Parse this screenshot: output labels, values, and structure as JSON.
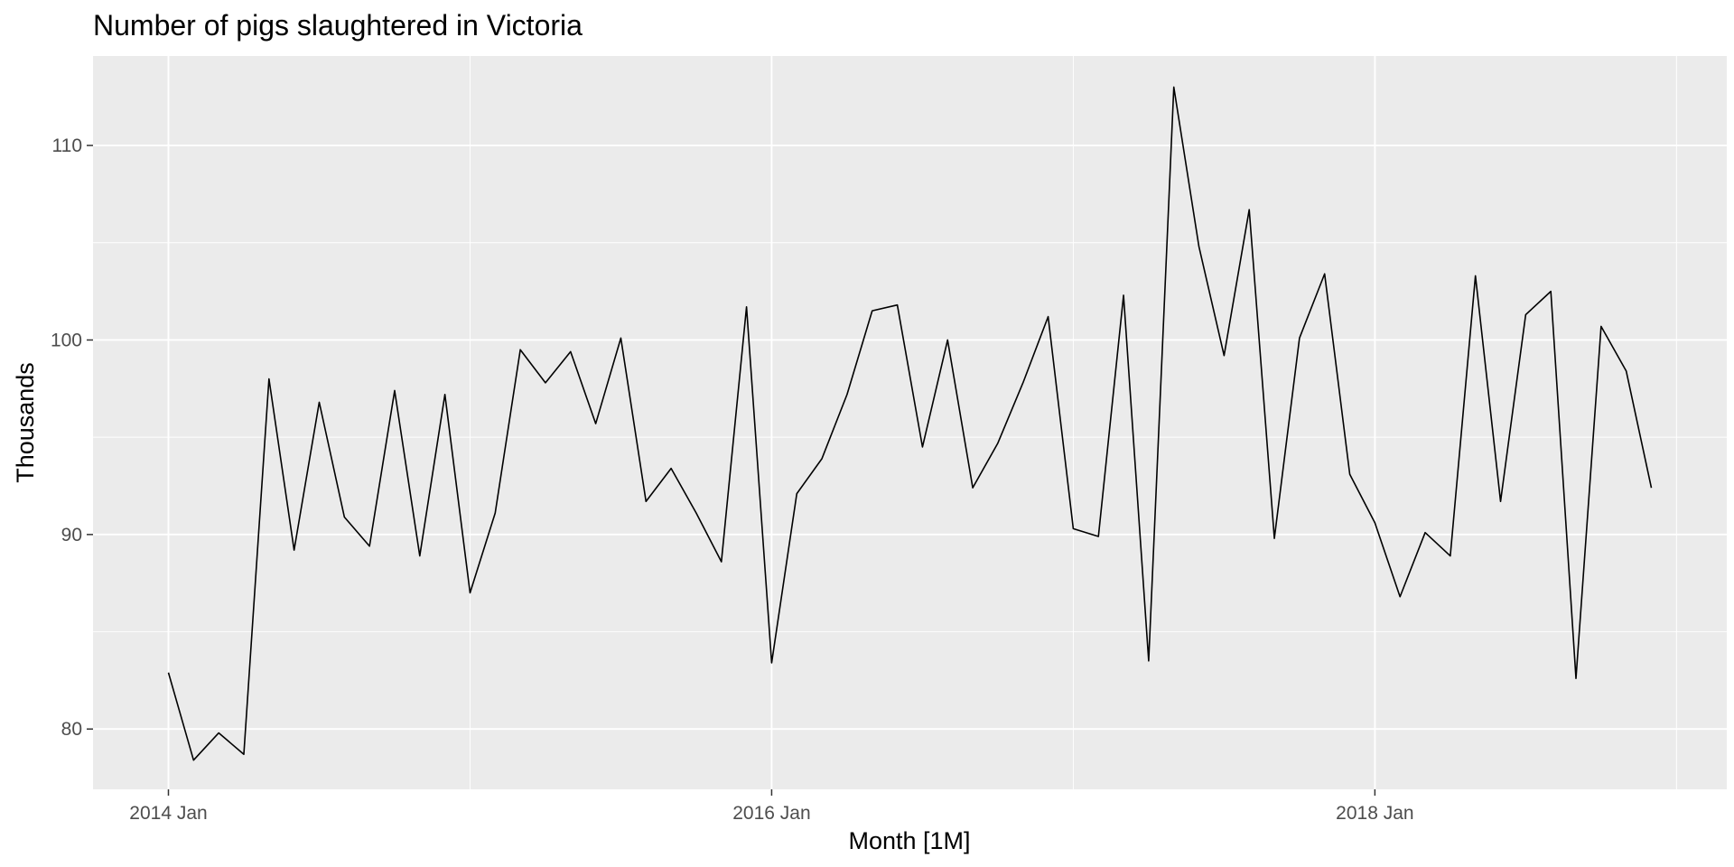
{
  "chart_data": {
    "type": "line",
    "title": "Number of pigs slaughtered in Victoria",
    "xlabel": "Month [1M]",
    "ylabel": "Thousands",
    "grid": true,
    "legend": "none",
    "colors": {
      "panel": "#ebebeb",
      "grid": "#ffffff",
      "line": "#000000",
      "tick_text": "#4d4d4d"
    },
    "xlim": [
      "2013-10",
      "2019-03"
    ],
    "ylim": [
      76.9,
      114.6
    ],
    "x_ticks": [
      {
        "value": "2014-01",
        "label": "2014 Jan"
      },
      {
        "value": "2016-01",
        "label": "2016 Jan"
      },
      {
        "value": "2018-01",
        "label": "2018 Jan"
      }
    ],
    "x_minor_ticks": [
      "2015-01",
      "2017-01",
      "2019-01"
    ],
    "y_ticks": [
      {
        "value": 80,
        "label": "80"
      },
      {
        "value": 90,
        "label": "90"
      },
      {
        "value": 100,
        "label": "100"
      },
      {
        "value": 110,
        "label": "110"
      }
    ],
    "y_minor_ticks": [
      85,
      95,
      105
    ],
    "series": [
      {
        "x": [
          "2014-01",
          "2014-02",
          "2014-03",
          "2014-04",
          "2014-05",
          "2014-06",
          "2014-07",
          "2014-08",
          "2014-09",
          "2014-10",
          "2014-11",
          "2014-12",
          "2015-01",
          "2015-02",
          "2015-03",
          "2015-04",
          "2015-05",
          "2015-06",
          "2015-07",
          "2015-08",
          "2015-09",
          "2015-10",
          "2015-11",
          "2015-12",
          "2016-01",
          "2016-02",
          "2016-03",
          "2016-04",
          "2016-05",
          "2016-06",
          "2016-07",
          "2016-08",
          "2016-09",
          "2016-10",
          "2016-11",
          "2016-12",
          "2017-01",
          "2017-02",
          "2017-03",
          "2017-04",
          "2017-05",
          "2017-06",
          "2017-07",
          "2017-08",
          "2017-09",
          "2017-10",
          "2017-11",
          "2017-12",
          "2018-01",
          "2018-02",
          "2018-03",
          "2018-04",
          "2018-05",
          "2018-06",
          "2018-07",
          "2018-08",
          "2018-09",
          "2018-10",
          "2018-11",
          "2018-12"
        ],
        "values": [
          82.9,
          78.4,
          79.8,
          78.7,
          98.0,
          89.2,
          96.8,
          90.9,
          89.4,
          97.4,
          88.9,
          97.2,
          87.0,
          91.1,
          99.5,
          97.8,
          99.4,
          95.7,
          100.1,
          91.7,
          93.4,
          91.1,
          88.6,
          101.7,
          83.4,
          92.1,
          93.9,
          97.2,
          101.5,
          101.8,
          94.5,
          100.0,
          92.4,
          94.7,
          97.8,
          101.2,
          90.3,
          89.9,
          102.3,
          83.5,
          113.0,
          104.8,
          99.2,
          106.7,
          89.8,
          100.1,
          103.4,
          93.1,
          90.6,
          86.8,
          90.1,
          88.9,
          103.3,
          91.7,
          101.3,
          102.5,
          82.6,
          100.7,
          98.4,
          92.4
        ]
      }
    ]
  }
}
